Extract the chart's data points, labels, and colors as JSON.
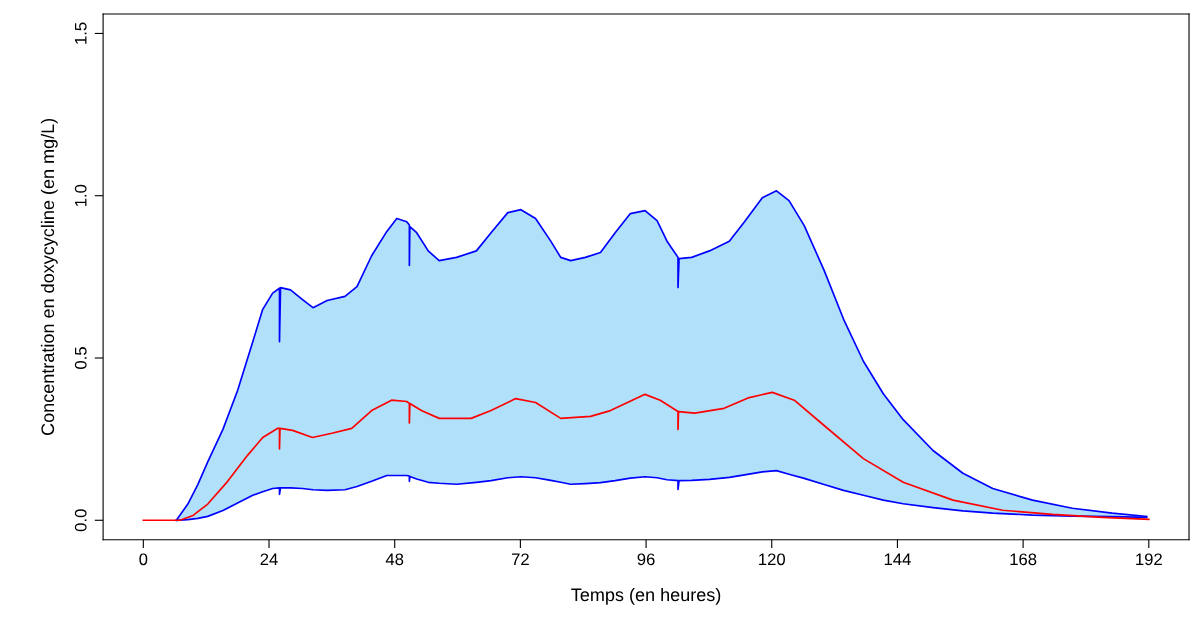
{
  "chart_data": {
    "type": "line",
    "xlabel": "Temps (en heures)",
    "ylabel": "Concentration en doxycycline (en mg/L)",
    "xlim": [
      -7.68,
      199.68
    ],
    "ylim": [
      -0.06,
      1.56
    ],
    "xticks": [
      0,
      24,
      48,
      72,
      96,
      120,
      144,
      168,
      192
    ],
    "yticks": [
      {
        "value": 0,
        "label": "0.0"
      },
      {
        "value": 0.5,
        "label": "0.5"
      },
      {
        "value": 1,
        "label": "1.0"
      },
      {
        "value": 1.5,
        "label": "1.5"
      }
    ],
    "grid": false,
    "legend": false,
    "series": [
      {
        "type": "area",
        "color": "#0000ff",
        "x": [
          6.3,
          8.5,
          10.4,
          12.3,
          15.2,
          18.0,
          20.9,
          22.8,
          24.7,
          26.0,
          26.0,
          26.2,
          28.1,
          30.4,
          32.4,
          35.1,
          38.5,
          40.8,
          43.6,
          46.5,
          48.4,
          50.3,
          50.8,
          50.8,
          50.9,
          52.2,
          54.4,
          56.5,
          59.8,
          63.6,
          66.4,
          69.6,
          72.1,
          74.9,
          77.8,
          79.7,
          81.6,
          84.4,
          87.3,
          90.1,
          93.0,
          95.8,
          98.1,
          100.0,
          102.1,
          102.1,
          102.3,
          104.7,
          108.1,
          111.9,
          114.8,
          118.2,
          120.9,
          123.3,
          126.2,
          130.0,
          133.7,
          137.5,
          141.3,
          145.1,
          150.8,
          156.5,
          162.2,
          169.8,
          177.4,
          185.0,
          191.6
        ],
        "values": [
          0,
          0.05,
          0.11,
          0.18,
          0.28,
          0.4,
          0.55,
          0.65,
          0.7,
          0.715,
          0.55,
          0.717,
          0.71,
          0.68,
          0.655,
          0.677,
          0.69,
          0.72,
          0.815,
          0.89,
          0.93,
          0.92,
          0.91,
          0.785,
          0.905,
          0.886,
          0.83,
          0.8,
          0.81,
          0.83,
          0.886,
          0.948,
          0.957,
          0.93,
          0.86,
          0.81,
          0.8,
          0.81,
          0.825,
          0.886,
          0.945,
          0.954,
          0.923,
          0.86,
          0.81,
          0.717,
          0.806,
          0.81,
          0.83,
          0.86,
          0.92,
          0.994,
          1.015,
          0.985,
          0.908,
          0.77,
          0.62,
          0.49,
          0.39,
          0.31,
          0.215,
          0.145,
          0.098,
          0.062,
          0.037,
          0.022,
          0.012
        ]
      },
      {
        "type": "line",
        "color": "#0000ff",
        "x": [
          6.3,
          8.5,
          10.4,
          12.3,
          15.2,
          18.0,
          20.9,
          22.8,
          24.7,
          26.0,
          26.0,
          26.2,
          28.1,
          30.4,
          32.4,
          35.1,
          38.5,
          40.8,
          43.6,
          46.5,
          48.4,
          50.3,
          50.8,
          50.8,
          50.9,
          52.2,
          54.4,
          56.5,
          59.8,
          63.6,
          66.4,
          69.6,
          72.1,
          74.9,
          77.8,
          79.7,
          81.6,
          84.4,
          87.3,
          90.1,
          93.0,
          95.8,
          98.1,
          100.0,
          102.1,
          102.1,
          102.3,
          104.7,
          108.1,
          111.9,
          114.8,
          118.2,
          120.9,
          123.3,
          126.2,
          130.0,
          133.7,
          137.5,
          141.3,
          145.1,
          150.8,
          156.5,
          162.2,
          169.8,
          177.4,
          185.0,
          191.6
        ],
        "values": [
          0,
          0.002,
          0.006,
          0.012,
          0.03,
          0.053,
          0.077,
          0.088,
          0.098,
          0.1,
          0.08,
          0.1,
          0.1,
          0.098,
          0.094,
          0.092,
          0.094,
          0.104,
          0.12,
          0.138,
          0.138,
          0.138,
          0.136,
          0.12,
          0.135,
          0.127,
          0.117,
          0.114,
          0.111,
          0.117,
          0.122,
          0.131,
          0.134,
          0.131,
          0.123,
          0.117,
          0.111,
          0.113,
          0.116,
          0.122,
          0.13,
          0.134,
          0.131,
          0.125,
          0.122,
          0.095,
          0.122,
          0.123,
          0.126,
          0.132,
          0.14,
          0.149,
          0.153,
          0.142,
          0.129,
          0.11,
          0.092,
          0.077,
          0.062,
          0.051,
          0.039,
          0.029,
          0.022,
          0.016,
          0.013,
          0.011,
          0.009
        ]
      },
      {
        "color": "#ff0000",
        "x": [
          0,
          7.0,
          9.5,
          12.3,
          16.1,
          19.9,
          22.8,
          25.6,
          26.0,
          26.0,
          26.1,
          28.5,
          32.3,
          36.0,
          39.8,
          43.6,
          47.4,
          50.3,
          50.8,
          50.8,
          50.9,
          53.1,
          56.5,
          62.6,
          66.4,
          71.1,
          74.9,
          79.7,
          85.4,
          89.2,
          95.8,
          98.7,
          102.1,
          102.1,
          102.2,
          105.3,
          110.9,
          115.7,
          120.1,
          124.3,
          130.0,
          137.5,
          145.1,
          154.6,
          164.1,
          173.6,
          183.1,
          192
        ],
        "values": [
          0,
          0,
          0.015,
          0.05,
          0.12,
          0.2,
          0.255,
          0.283,
          0.283,
          0.22,
          0.283,
          0.277,
          0.255,
          0.268,
          0.283,
          0.338,
          0.37,
          0.366,
          0.36,
          0.3,
          0.36,
          0.338,
          0.314,
          0.314,
          0.338,
          0.375,
          0.363,
          0.314,
          0.32,
          0.338,
          0.388,
          0.37,
          0.335,
          0.28,
          0.335,
          0.33,
          0.345,
          0.378,
          0.394,
          0.37,
          0.292,
          0.19,
          0.117,
          0.062,
          0.031,
          0.018,
          0.009,
          0.003
        ]
      }
    ]
  }
}
